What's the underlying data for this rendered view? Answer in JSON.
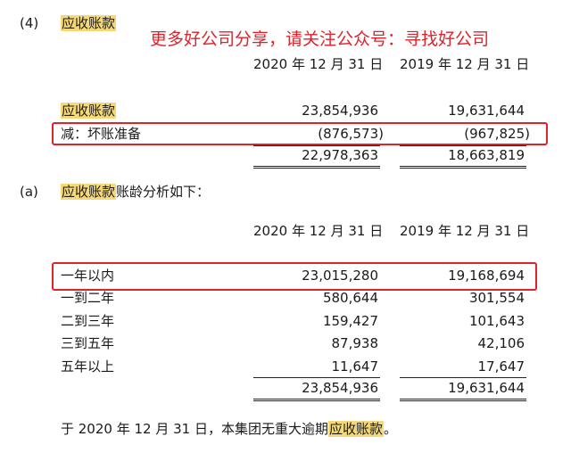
{
  "section_4": {
    "marker": "(4)",
    "title": "应收账款"
  },
  "banner": "更多好公司分享，请关注公众号：寻找好公司",
  "table1": {
    "headers": [
      "2020 年 12 月 31 日",
      "2019 年 12 月 31 日"
    ],
    "rows": [
      {
        "label": "应收账款",
        "v2020": "23,854,936",
        "v2019": "19,631,644"
      },
      {
        "label": "减：坏账准备",
        "v2020": "(876,573)",
        "v2019": "(967,825)"
      }
    ],
    "total": {
      "v2020": "22,978,363",
      "v2019": "18,663,819"
    }
  },
  "section_a": {
    "marker": "(a)",
    "title_highlight": "应收账款",
    "title_rest": "账龄分析如下："
  },
  "table2": {
    "headers": [
      "2020 年 12 月 31 日",
      "2019 年 12 月 31 日"
    ],
    "rows": [
      {
        "label": "一年以内",
        "v2020": "23,015,280",
        "v2019": "19,168,694"
      },
      {
        "label": "一到二年",
        "v2020": "580,644",
        "v2019": "301,554"
      },
      {
        "label": "二到三年",
        "v2020": "159,427",
        "v2019": "101,643"
      },
      {
        "label": "三到五年",
        "v2020": "87,938",
        "v2019": "42,106"
      },
      {
        "label": "五年以上",
        "v2020": "11,647",
        "v2019": "17,647"
      }
    ],
    "total": {
      "v2020": "23,854,936",
      "v2019": "19,631,644"
    }
  },
  "footnote": {
    "text": "于 2020 年 12 月 31 日，本集团无重大逾期",
    "highlight": "应收账款",
    "end": "。"
  }
}
